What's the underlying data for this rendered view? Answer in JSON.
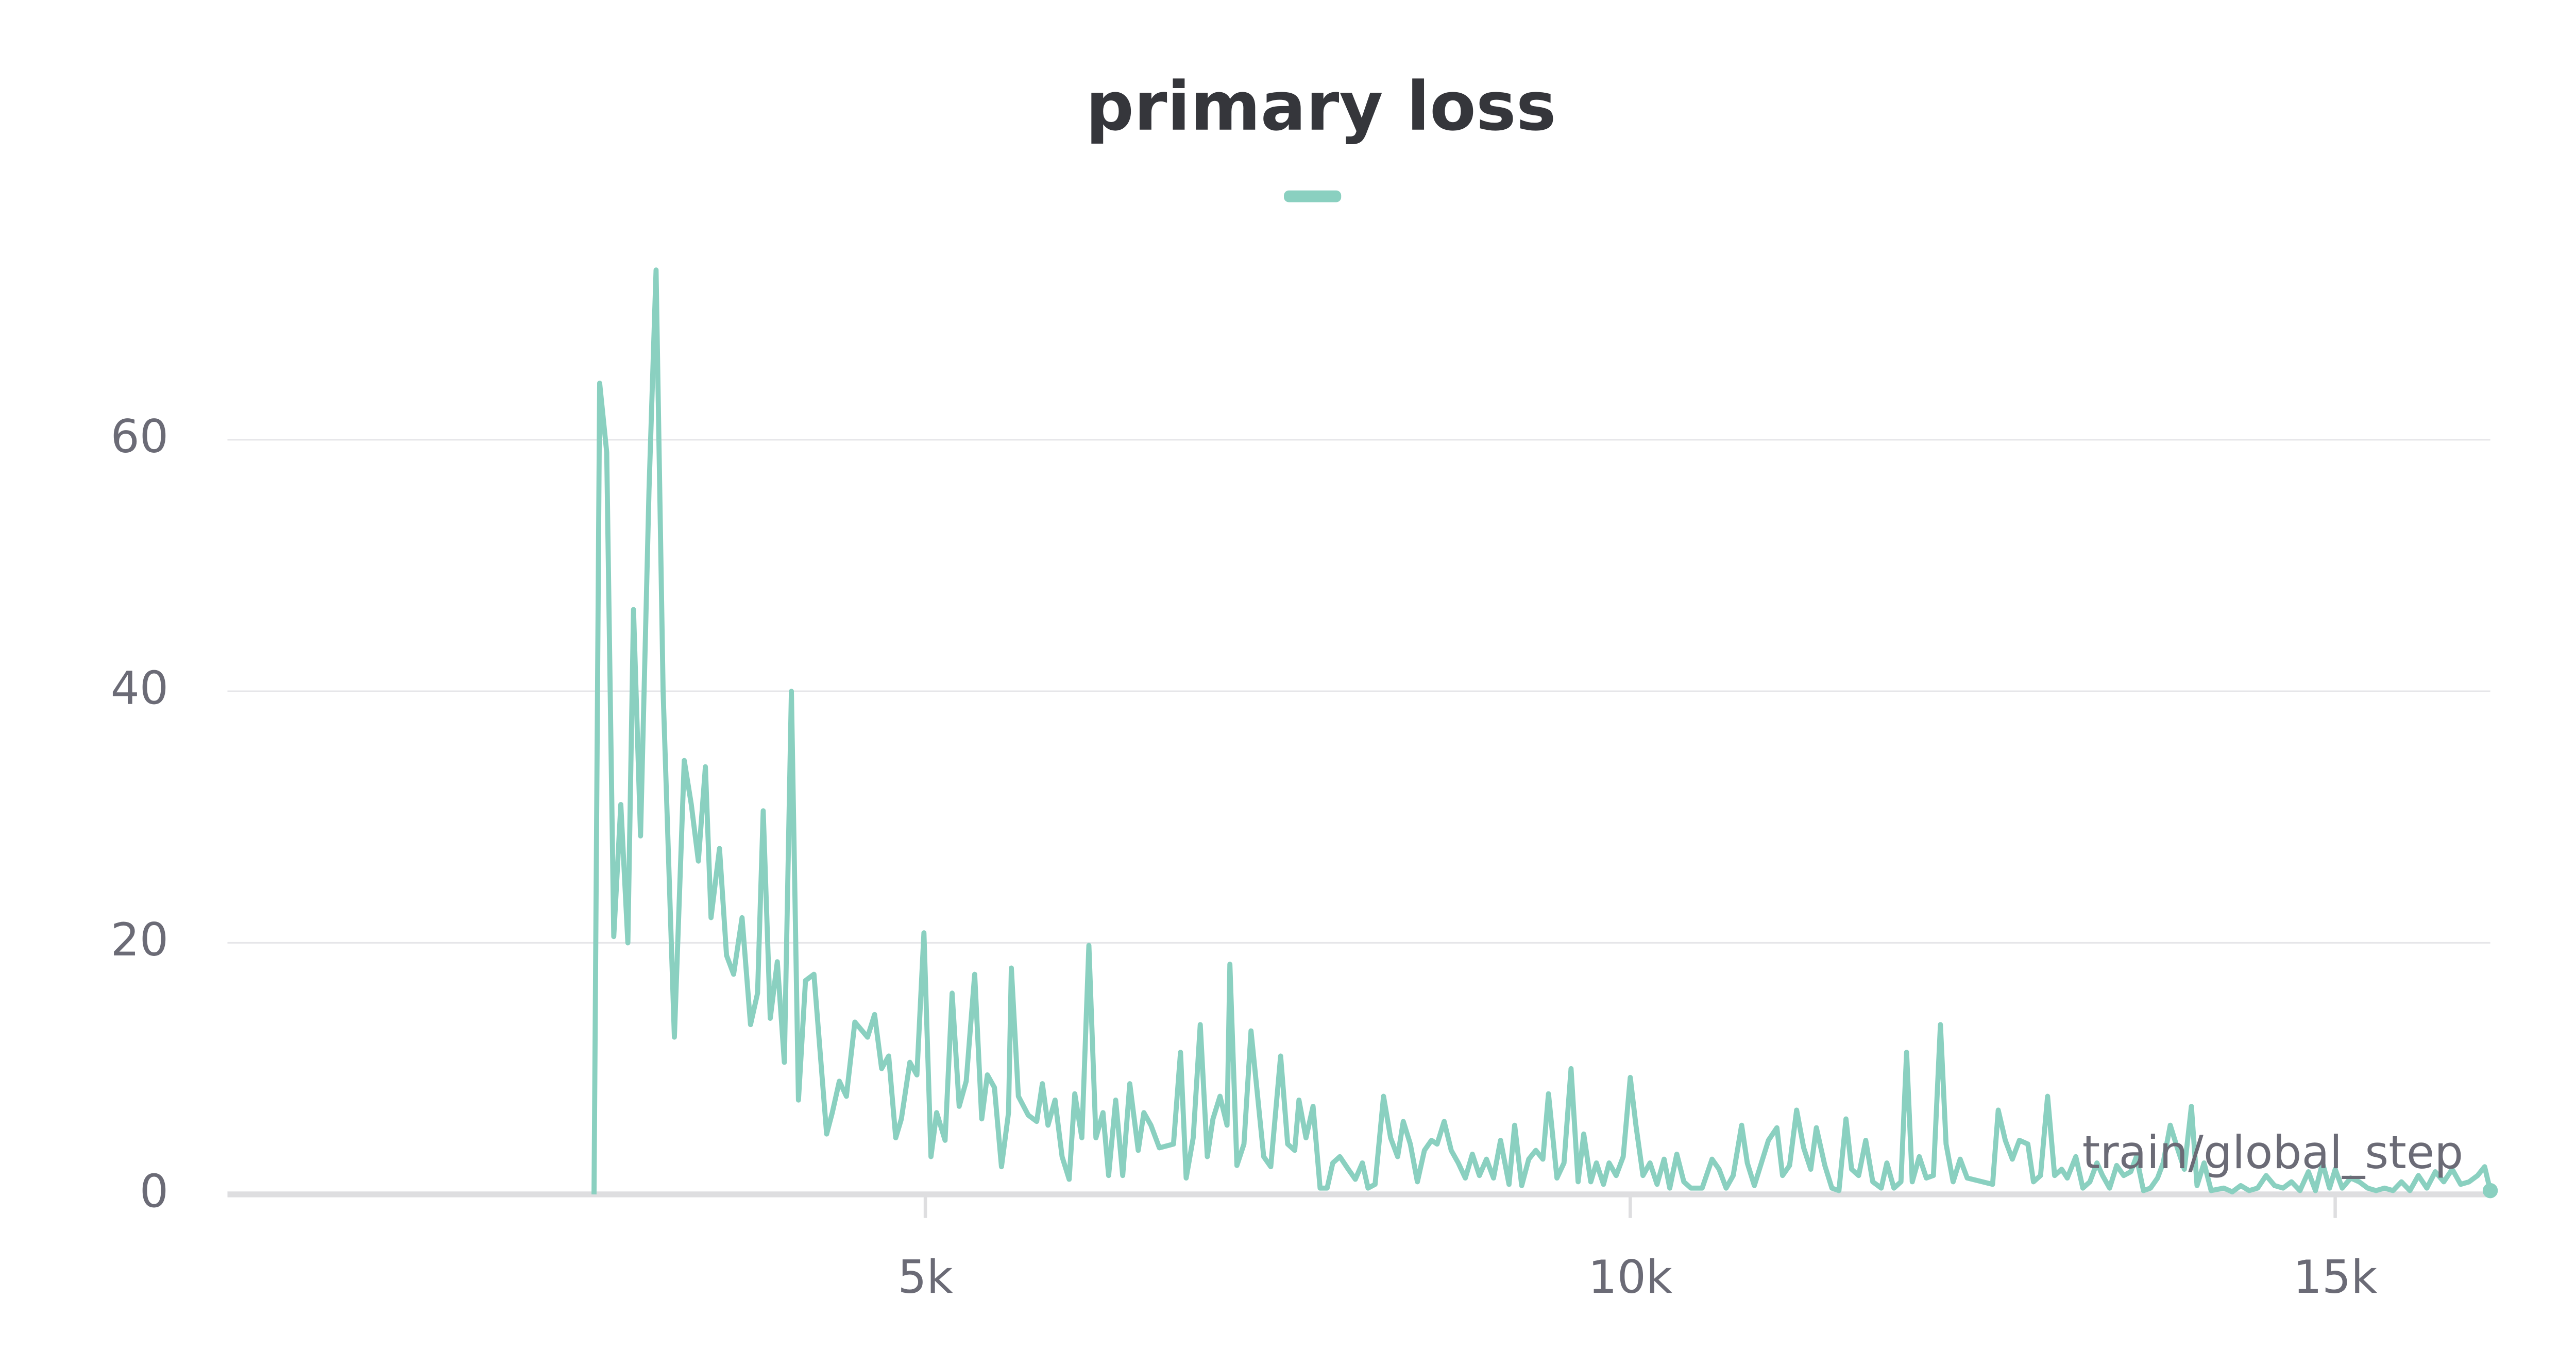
{
  "chart_data": {
    "type": "line",
    "title": "primary loss",
    "x_label": "train/global_step",
    "x": [
      2650,
      2690,
      2740,
      2790,
      2840,
      2890,
      2930,
      2980,
      3040,
      3090,
      3140,
      3220,
      3290,
      3340,
      3390,
      3440,
      3480,
      3540,
      3590,
      3640,
      3700,
      3760,
      3810,
      3850,
      3900,
      3950,
      4000,
      4050,
      4100,
      4150,
      4210,
      4300,
      4340,
      4390,
      4440,
      4500,
      4590,
      4640,
      4690,
      4740,
      4790,
      4830,
      4890,
      4940,
      4990,
      5040,
      5080,
      5140,
      5190,
      5240,
      5290,
      5350,
      5400,
      5440,
      5490,
      5540,
      5590,
      5610,
      5660,
      5730,
      5790,
      5830,
      5870,
      5920,
      5970,
      6020,
      6060,
      6110,
      6160,
      6210,
      6260,
      6300,
      6350,
      6400,
      6450,
      6510,
      6550,
      6600,
      6660,
      6760,
      6810,
      6850,
      6900,
      6950,
      7000,
      7040,
      7090,
      7140,
      7160,
      7210,
      7260,
      7310,
      7400,
      7450,
      7520,
      7570,
      7620,
      7650,
      7700,
      7750,
      7800,
      7850,
      7890,
      7940,
      8000,
      8050,
      8100,
      8140,
      8190,
      8250,
      8300,
      8350,
      8390,
      8440,
      8490,
      8540,
      8590,
      8630,
      8680,
      8730,
      8780,
      8830,
      8880,
      8930,
      8980,
      9030,
      9080,
      9140,
      9180,
      9230,
      9280,
      9330,
      9380,
      9420,
      9480,
      9530,
      9580,
      9630,
      9670,
      9720,
      9760,
      9810,
      9850,
      9900,
      9950,
      10000,
      10040,
      10090,
      10140,
      10190,
      10240,
      10280,
      10330,
      10380,
      10430,
      10510,
      10580,
      10630,
      10680,
      10730,
      10790,
      10830,
      10880,
      10930,
      10980,
      11040,
      11080,
      11130,
      11180,
      11230,
      11280,
      11320,
      11380,
      11430,
      11480,
      11530,
      11570,
      11620,
      11670,
      11720,
      11780,
      11820,
      11870,
      11920,
      11960,
      12000,
      12050,
      12100,
      12150,
      12200,
      12240,
      12290,
      12340,
      12390,
      12570,
      12610,
      12660,
      12710,
      12760,
      12820,
      12860,
      12910,
      12960,
      13010,
      13060,
      13100,
      13160,
      13210,
      13260,
      13310,
      13350,
      13400,
      13450,
      13500,
      13550,
      13590,
      13640,
      13690,
      13740,
      13780,
      13830,
      13880,
      13930,
      13980,
      14020,
      14070,
      14120,
      14210,
      14270,
      14330,
      14390,
      14450,
      14510,
      14570,
      14630,
      14690,
      14750,
      14810,
      14860,
      14910,
      14960,
      15000,
      15050,
      15110,
      15170,
      15230,
      15290,
      15350,
      15410,
      15470,
      15530,
      15590,
      15650,
      15710,
      15770,
      15830,
      15890,
      15950,
      16010,
      16060,
      16100
    ],
    "series": [
      {
        "color": "#8ad0c0",
        "values": [
          0,
          64.5,
          59,
          20.5,
          31,
          20,
          46.5,
          28.5,
          56,
          73.5,
          40,
          12.5,
          34.5,
          31,
          26.5,
          34,
          22,
          27.5,
          19,
          17.5,
          22,
          13.5,
          16,
          30.5,
          14,
          18.5,
          10.5,
          40,
          7.5,
          17,
          17.5,
          4.8,
          6.5,
          9,
          7.8,
          13.7,
          12.5,
          14.3,
          10,
          11,
          4.5,
          6,
          10.5,
          9.5,
          20.8,
          3,
          6.5,
          4.3,
          16,
          7,
          9,
          17.5,
          6,
          9.5,
          8.5,
          2.2,
          6.5,
          18,
          7.8,
          6.3,
          5.8,
          8.8,
          5.5,
          7.5,
          3,
          1.2,
          8,
          4.5,
          19.8,
          4.5,
          6.5,
          1.5,
          7.5,
          1.5,
          8.8,
          3.5,
          6.5,
          5.5,
          3.7,
          4,
          11.3,
          1.3,
          4.5,
          13.5,
          3,
          6,
          7.8,
          5.5,
          18.3,
          2.3,
          4,
          13,
          3,
          2.2,
          11,
          4,
          3.5,
          7.5,
          4.5,
          7,
          0.5,
          0.5,
          2.5,
          3,
          2,
          1.2,
          2.5,
          0.5,
          0.8,
          7.8,
          4.5,
          3,
          5.8,
          4,
          1,
          3.5,
          4.3,
          4,
          5.8,
          3.5,
          2.5,
          1.3,
          3.2,
          1.5,
          2.8,
          1.3,
          4.3,
          0.8,
          5.5,
          0.7,
          2.8,
          3.5,
          2.8,
          8,
          1.3,
          2.5,
          10,
          1,
          4.8,
          1,
          2.5,
          0.8,
          2.5,
          1.5,
          3,
          9.3,
          5.5,
          1.5,
          2.5,
          0.8,
          2.8,
          0.5,
          3.2,
          1,
          0.5,
          0.5,
          2.8,
          2,
          0.5,
          1.5,
          5.5,
          2.5,
          0.7,
          2.5,
          4.3,
          5.3,
          1.5,
          2.3,
          6.7,
          3.7,
          2,
          5.3,
          2.3,
          0.5,
          0.3,
          6,
          2,
          1.5,
          4.3,
          1,
          0.5,
          2.5,
          0.5,
          1,
          11.3,
          1,
          3,
          1.3,
          1.5,
          13.5,
          4,
          1,
          2.8,
          1.3,
          0.8,
          6.7,
          4.3,
          2.8,
          4.3,
          4,
          1,
          1.5,
          7.8,
          1.5,
          2,
          1.3,
          3,
          0.5,
          1,
          2.5,
          1.5,
          0.5,
          2.3,
          1.5,
          1.8,
          3,
          0.3,
          0.5,
          1.3,
          2.5,
          5.5,
          3.7,
          2,
          7,
          0.7,
          2.5,
          0.3,
          0.5,
          0.2,
          0.7,
          0.3,
          0.5,
          1.5,
          0.7,
          0.5,
          1,
          0.3,
          1.8,
          0.3,
          2.5,
          0.5,
          2,
          0.5,
          1.3,
          1,
          0.5,
          0.3,
          0.5,
          0.3,
          1,
          0.3,
          1.5,
          0.5,
          1.8,
          1,
          2,
          0.8,
          1,
          1.5,
          2.2,
          0.3
        ]
      }
    ],
    "xlim": [
      50,
      16100
    ],
    "ylim": [
      0,
      75
    ],
    "xticks": [
      {
        "value": 5000,
        "label": "5k"
      },
      {
        "value": 10000,
        "label": "10k"
      },
      {
        "value": 15000,
        "label": "15k"
      }
    ],
    "yticks": [
      0,
      20,
      40,
      60
    ],
    "grid": true
  }
}
